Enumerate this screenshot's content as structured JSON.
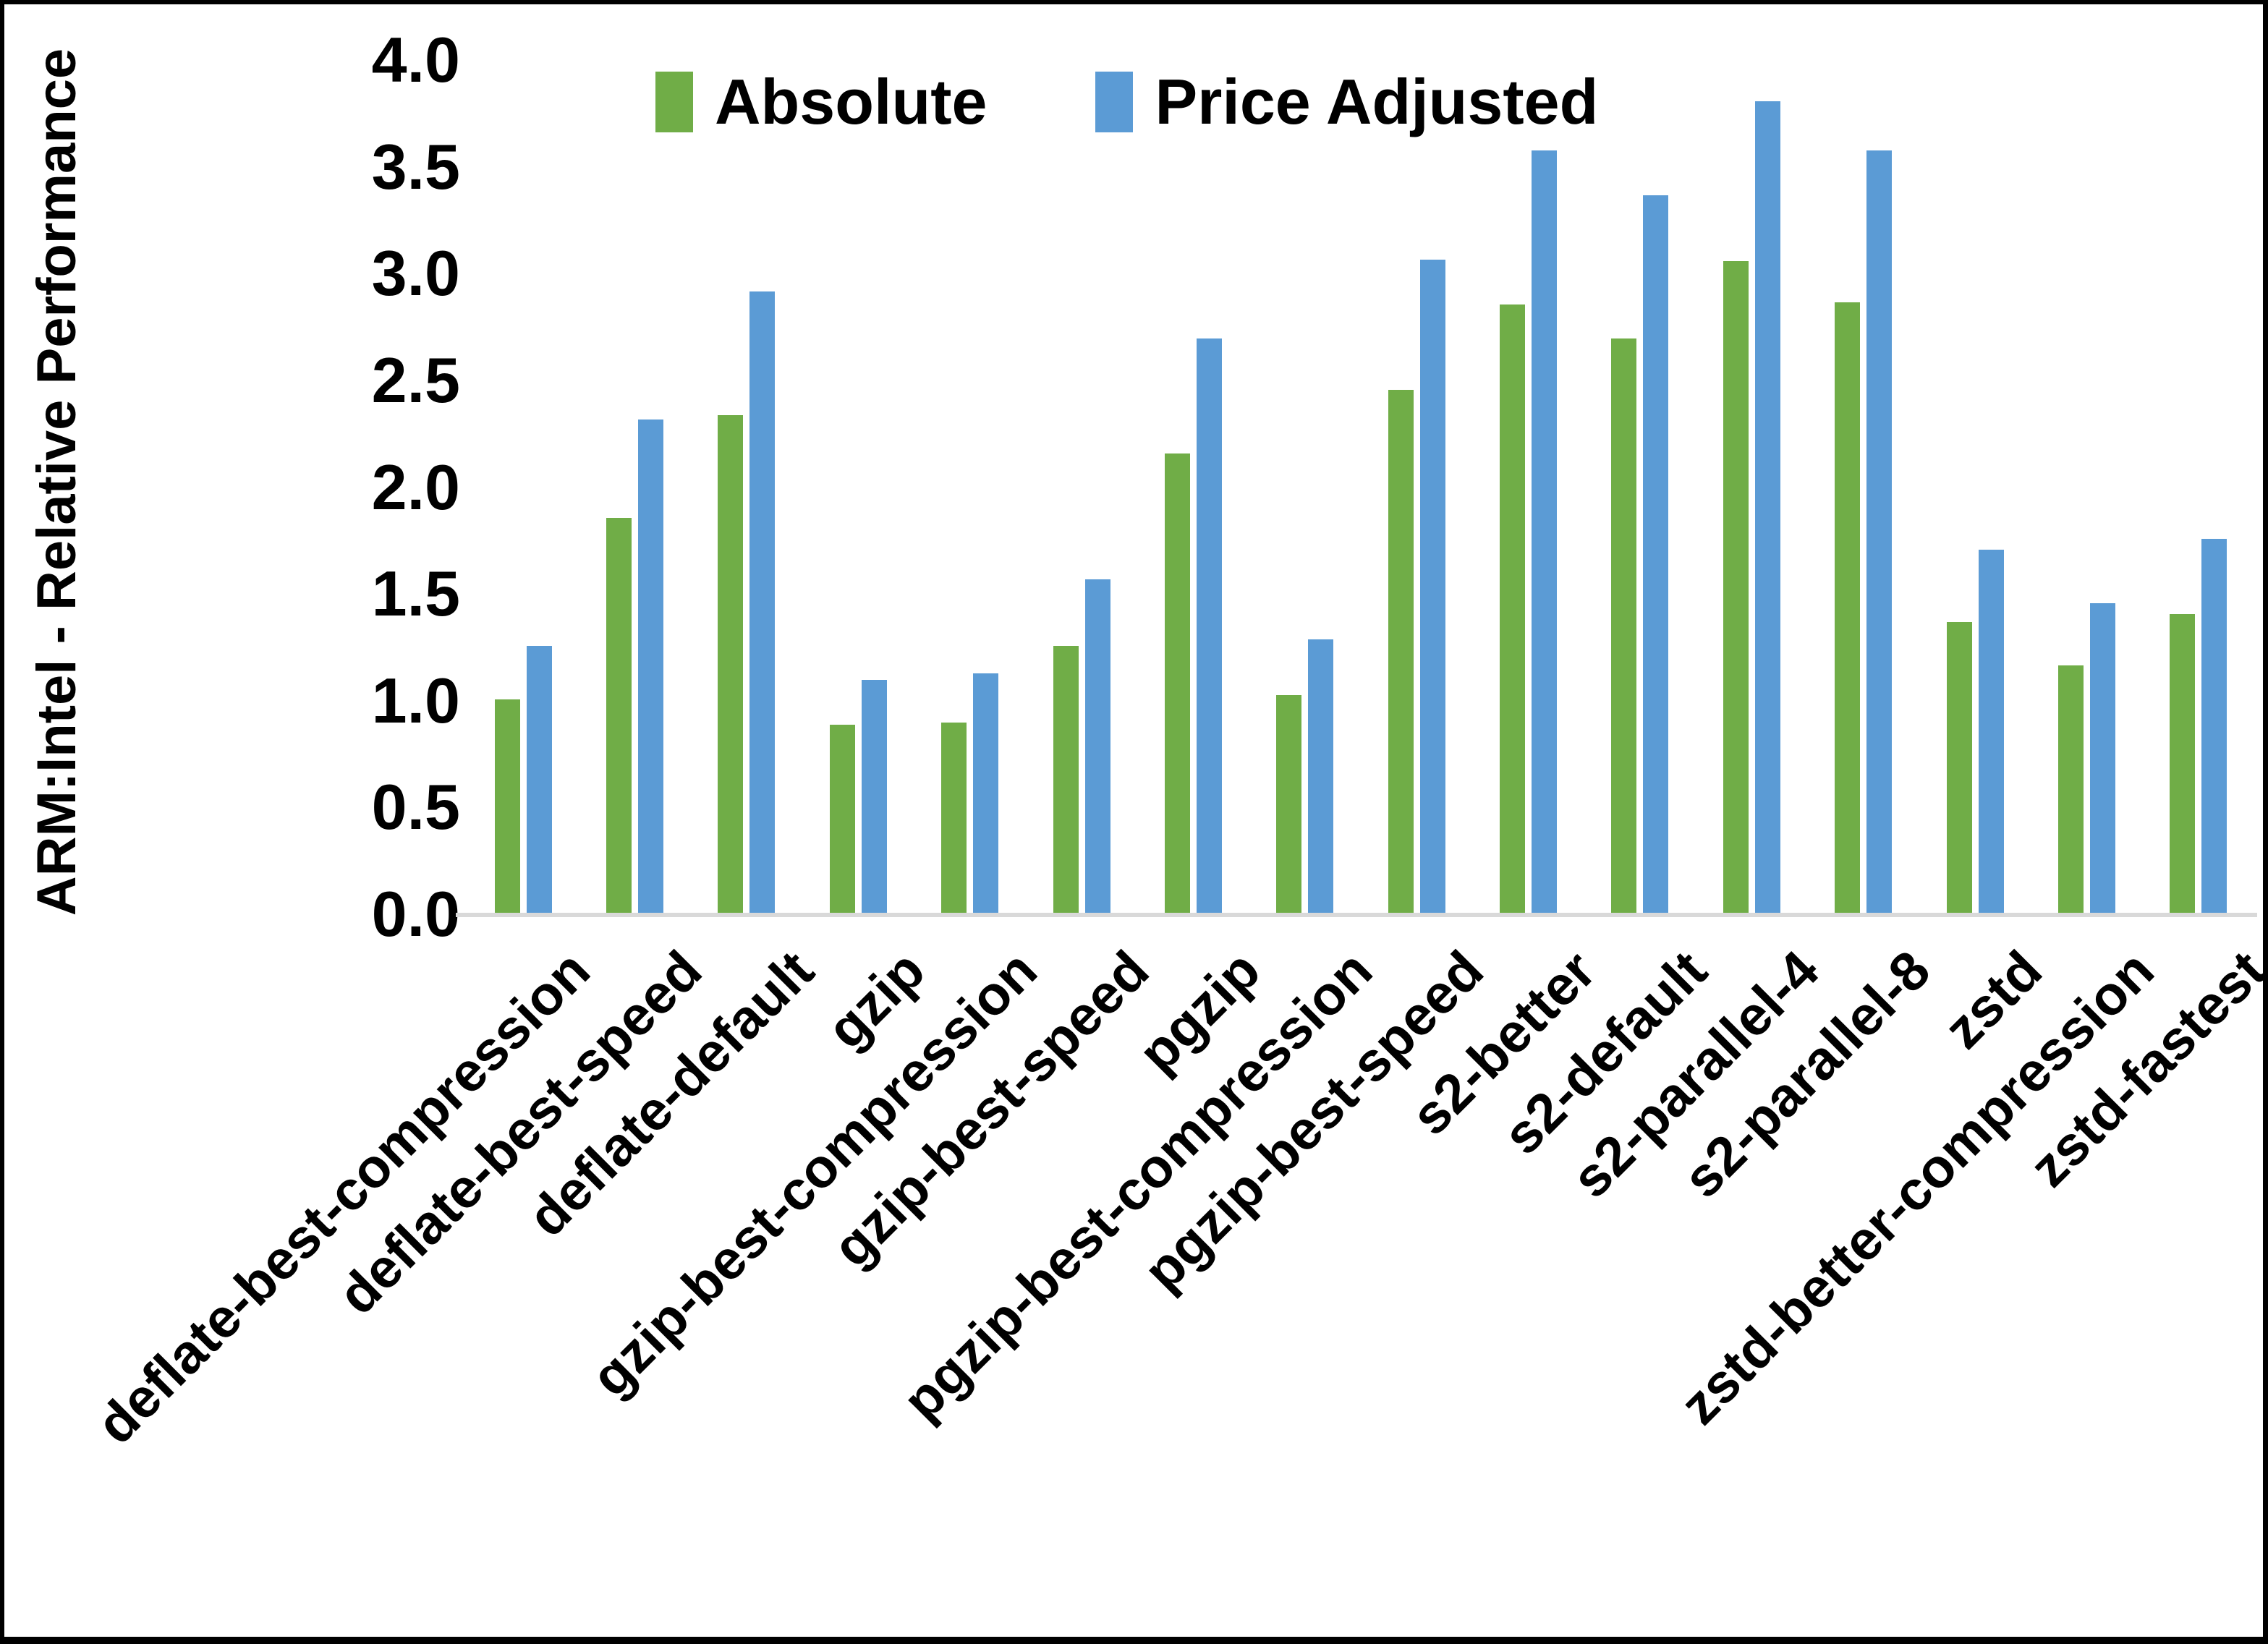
{
  "chart_data": {
    "type": "bar",
    "title": "",
    "ylabel": "ARM:Intel - Relative Performance",
    "xlabel": "",
    "ylim": [
      0.0,
      4.0
    ],
    "ytick_labels": [
      "0.0",
      "0.5",
      "1.0",
      "1.5",
      "2.0",
      "2.5",
      "3.0",
      "3.5",
      "4.0"
    ],
    "grid": false,
    "legend_position": "top-center",
    "categories": [
      "deflate-best-compression",
      "deflate-best-speed",
      "deflate-default",
      "gzip",
      "gzip-best-compression",
      "gzip-best-speed",
      "pgzip",
      "pgzip-best-compression",
      "pgzip-best-speed",
      "s2-better",
      "s2-default",
      "s2-parallel-4",
      "s2-parallel-8",
      "zstd",
      "zstd-better-compression",
      "zstd-fastest"
    ],
    "series": [
      {
        "name": "Absolute",
        "color": "#70AD47",
        "values": [
          1.0,
          1.85,
          2.33,
          0.88,
          0.89,
          1.25,
          2.15,
          1.02,
          2.45,
          2.85,
          2.69,
          3.05,
          2.86,
          1.36,
          1.16,
          1.4
        ]
      },
      {
        "name": "Price Adjusted",
        "color": "#5B9BD5",
        "values": [
          1.25,
          2.31,
          2.91,
          1.09,
          1.12,
          1.56,
          2.69,
          1.28,
          3.06,
          3.57,
          3.36,
          3.8,
          3.57,
          1.7,
          1.45,
          1.75
        ]
      }
    ],
    "colors": {
      "axis_line": "#d9d9d9",
      "text": "#000000",
      "background": "#ffffff",
      "frame": "#000000"
    }
  }
}
